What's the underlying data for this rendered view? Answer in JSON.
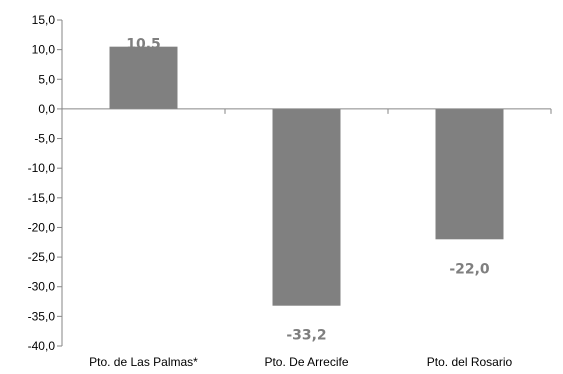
{
  "chart_data": {
    "type": "bar",
    "categories": [
      "Pto. de Las Palmas*",
      "Pto. De Arrecife",
      "Pto. del Rosario"
    ],
    "values": [
      10.5,
      -33.2,
      -22.0
    ],
    "data_labels": [
      "10,5",
      "-33,2",
      "-22,0"
    ],
    "ylim": [
      -40,
      15
    ],
    "y_ticks": [
      15,
      10,
      5,
      0,
      -5,
      -10,
      -15,
      -20,
      -25,
      -30,
      -35,
      -40
    ],
    "y_tick_labels": [
      "15,0",
      "10,0",
      "5,0",
      "0,0",
      "-5,0",
      "-10,0",
      "-15,0",
      "-20,0",
      "-25,0",
      "-30,0",
      "-35,0",
      "-40,0"
    ],
    "title": "",
    "xlabel": "",
    "ylabel": "",
    "grid": false,
    "legend": "none",
    "bar_color": "#808080",
    "label_color": "#7f7f7f",
    "axis_color": "#868686"
  }
}
